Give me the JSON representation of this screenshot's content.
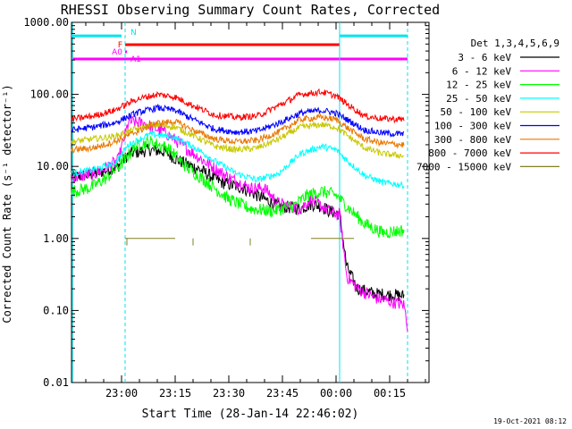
{
  "chart_data": {
    "type": "line",
    "title": "RHESSI Observing Summary Count Rates, Corrected",
    "xlabel": "Start Time (28-Jan-14 22:46:02)",
    "ylabel": "Corrected Count Rate (s⁻¹ detector⁻¹)",
    "y_scale": "log",
    "ylim": [
      0.01,
      1000
    ],
    "xlim": [
      0,
      100
    ],
    "x_ticks": [
      {
        "x": 14,
        "label": "23:00"
      },
      {
        "x": 29,
        "label": "23:15"
      },
      {
        "x": 44,
        "label": "23:30"
      },
      {
        "x": 59,
        "label": "23:45"
      },
      {
        "x": 74,
        "label": "00:00"
      },
      {
        "x": 89,
        "label": "00:15"
      }
    ],
    "y_ticks": [
      {
        "y": 1000,
        "label": "1000.00"
      },
      {
        "y": 100,
        "label": "100.00"
      },
      {
        "y": 10,
        "label": "10.00"
      },
      {
        "y": 1,
        "label": "1.00"
      },
      {
        "y": 0.1,
        "label": "0.10"
      },
      {
        "y": 0.01,
        "label": "0.01"
      }
    ],
    "legend_title": "Det 1,3,4,5,6,9",
    "legend_position": "right",
    "series": [
      {
        "name": "3 - 6 keV",
        "color": "#000000",
        "points": [
          [
            0,
            7
          ],
          [
            7,
            8
          ],
          [
            13,
            10
          ],
          [
            16,
            15
          ],
          [
            22,
            17
          ],
          [
            26,
            16
          ],
          [
            30,
            12
          ],
          [
            36,
            9
          ],
          [
            42,
            6
          ],
          [
            48,
            5
          ],
          [
            54,
            3.5
          ],
          [
            58,
            2.8
          ],
          [
            64,
            2.6
          ],
          [
            67,
            3
          ],
          [
            70,
            2.8
          ],
          [
            72,
            2.4
          ],
          [
            75,
            2.2
          ],
          [
            77,
            0.4
          ],
          [
            80,
            0.2
          ],
          [
            85,
            0.17
          ],
          [
            93,
            0.16
          ]
        ]
      },
      {
        "name": "6 - 12 keV",
        "color": "#ff00ff",
        "points": [
          [
            0,
            7
          ],
          [
            7,
            8
          ],
          [
            13,
            12
          ],
          [
            16,
            42
          ],
          [
            20,
            40
          ],
          [
            26,
            30
          ],
          [
            32,
            18
          ],
          [
            38,
            11
          ],
          [
            44,
            7
          ],
          [
            50,
            5
          ],
          [
            54,
            5
          ],
          [
            58,
            3
          ],
          [
            64,
            2.6
          ],
          [
            67,
            3.5
          ],
          [
            70,
            2.8
          ],
          [
            72,
            2.4
          ],
          [
            75,
            2.1
          ],
          [
            77,
            0.3
          ],
          [
            80,
            0.2
          ],
          [
            85,
            0.15
          ],
          [
            93,
            0.12
          ],
          [
            94,
            0.06
          ]
        ]
      },
      {
        "name": "12 - 25 keV",
        "color": "#00ff00",
        "points": [
          [
            0,
            4.5
          ],
          [
            5,
            5
          ],
          [
            10,
            7
          ],
          [
            14,
            11
          ],
          [
            18,
            19
          ],
          [
            22,
            22
          ],
          [
            27,
            18
          ],
          [
            32,
            10
          ],
          [
            38,
            6
          ],
          [
            44,
            3.5
          ],
          [
            50,
            2.6
          ],
          [
            56,
            2.4
          ],
          [
            62,
            2.8
          ],
          [
            66,
            4
          ],
          [
            70,
            4.5
          ],
          [
            74,
            4
          ],
          [
            78,
            2.5
          ],
          [
            82,
            1.6
          ],
          [
            87,
            1.2
          ],
          [
            93,
            1.3
          ]
        ]
      },
      {
        "name": "25 - 50 keV",
        "color": "#00ffff",
        "points": [
          [
            0,
            8
          ],
          [
            6,
            9
          ],
          [
            12,
            11
          ],
          [
            16,
            20
          ],
          [
            22,
            28
          ],
          [
            28,
            26
          ],
          [
            34,
            19
          ],
          [
            40,
            12
          ],
          [
            46,
            8
          ],
          [
            52,
            6.5
          ],
          [
            58,
            8
          ],
          [
            64,
            15
          ],
          [
            70,
            19
          ],
          [
            74,
            17
          ],
          [
            78,
            11
          ],
          [
            82,
            7.5
          ],
          [
            87,
            6
          ],
          [
            93,
            5.5
          ]
        ]
      },
      {
        "name": "50 - 100 keV",
        "color": "#c8c800",
        "points": [
          [
            0,
            22
          ],
          [
            6,
            24
          ],
          [
            12,
            26
          ],
          [
            18,
            33
          ],
          [
            24,
            38
          ],
          [
            29,
            35
          ],
          [
            34,
            27
          ],
          [
            40,
            19
          ],
          [
            46,
            17
          ],
          [
            52,
            18
          ],
          [
            58,
            24
          ],
          [
            64,
            35
          ],
          [
            70,
            38
          ],
          [
            74,
            35
          ],
          [
            78,
            25
          ],
          [
            82,
            18
          ],
          [
            87,
            15
          ],
          [
            93,
            14
          ]
        ]
      },
      {
        "name": "100 - 300 keV",
        "color": "#0000ff",
        "points": [
          [
            0,
            32
          ],
          [
            6,
            35
          ],
          [
            12,
            40
          ],
          [
            18,
            55
          ],
          [
            24,
            65
          ],
          [
            29,
            60
          ],
          [
            34,
            45
          ],
          [
            40,
            33
          ],
          [
            46,
            30
          ],
          [
            52,
            31
          ],
          [
            58,
            40
          ],
          [
            64,
            55
          ],
          [
            70,
            60
          ],
          [
            74,
            55
          ],
          [
            78,
            42
          ],
          [
            82,
            32
          ],
          [
            87,
            29
          ],
          [
            93,
            28
          ]
        ]
      },
      {
        "name": "300 - 800 keV",
        "color": "#e87800",
        "points": [
          [
            0,
            17
          ],
          [
            6,
            18
          ],
          [
            12,
            22
          ],
          [
            18,
            30
          ],
          [
            24,
            40
          ],
          [
            29,
            42
          ],
          [
            34,
            32
          ],
          [
            40,
            24
          ],
          [
            46,
            22
          ],
          [
            52,
            23
          ],
          [
            58,
            30
          ],
          [
            64,
            45
          ],
          [
            70,
            48
          ],
          [
            74,
            45
          ],
          [
            78,
            32
          ],
          [
            82,
            24
          ],
          [
            87,
            21
          ],
          [
            93,
            20
          ]
        ]
      },
      {
        "name": "800 - 7000 keV",
        "color": "#ff0000",
        "points": [
          [
            0,
            45
          ],
          [
            6,
            50
          ],
          [
            12,
            60
          ],
          [
            18,
            85
          ],
          [
            24,
            100
          ],
          [
            29,
            92
          ],
          [
            34,
            70
          ],
          [
            40,
            52
          ],
          [
            46,
            48
          ],
          [
            52,
            50
          ],
          [
            58,
            70
          ],
          [
            64,
            100
          ],
          [
            70,
            108
          ],
          [
            74,
            95
          ],
          [
            78,
            68
          ],
          [
            82,
            50
          ],
          [
            87,
            46
          ],
          [
            93,
            45
          ]
        ]
      },
      {
        "name": "7000 - 15000 keV",
        "color": "#808020",
        "points": []
      }
    ],
    "flags": [
      {
        "label": "N",
        "color": "#00e5ee",
        "y": 650,
        "segments": [
          [
            0,
            14
          ],
          [
            75,
            94
          ]
        ]
      },
      {
        "label": "F",
        "color": "#ff0000",
        "y": 490,
        "segments": [
          [
            15,
            75
          ]
        ]
      },
      {
        "label": "A0",
        "color": "#ff00ff",
        "y": 390,
        "segments": [
          [
            15,
            15.5
          ]
        ]
      },
      {
        "label": "A1",
        "color": "#ff00ff",
        "y": 310,
        "segments": [
          [
            0,
            26
          ],
          [
            26,
            94
          ]
        ]
      }
    ],
    "vertical_markers": [
      {
        "x": 0.3,
        "style": "solid",
        "color": "#00e5ee"
      },
      {
        "x": 15,
        "style": "dashed",
        "color": "#00e5ee"
      },
      {
        "x": 75,
        "style": "solid",
        "color": "#00e5ee"
      },
      {
        "x": 94,
        "style": "dashed",
        "color": "#00e5ee"
      }
    ],
    "attenuator_trace": {
      "color": "#808020",
      "y": 1.0,
      "segments": [
        [
          15,
          29
        ],
        [
          67,
          79
        ]
      ],
      "ticks": [
        [
          15.5,
          0.8
        ],
        [
          34,
          0.8
        ],
        [
          50,
          0.8
        ]
      ]
    }
  },
  "footer": {
    "date": "19-Oct-2021 08:12"
  }
}
